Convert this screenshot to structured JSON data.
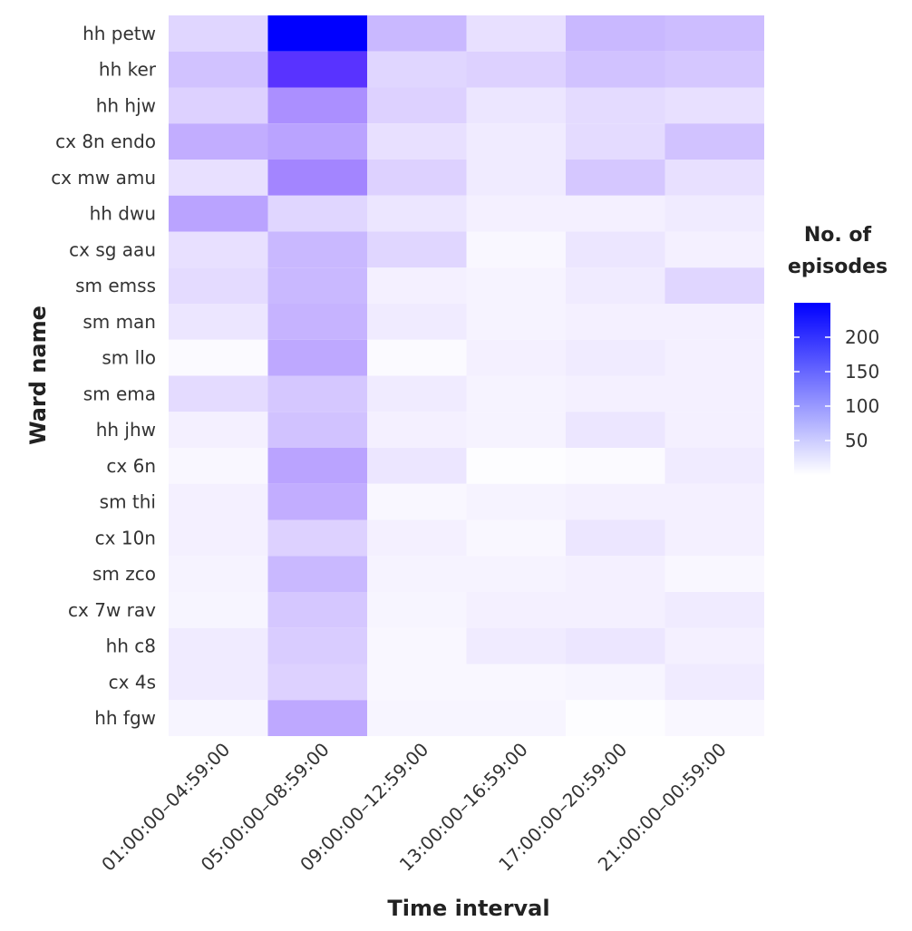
{
  "chart_data": {
    "type": "heatmap",
    "xlabel": "Time interval",
    "ylabel": "Ward name",
    "x_categories": [
      "01:00:00–04:59:00",
      "05:00:00–08:59:00",
      "09:00:00–12:59:00",
      "13:00:00–16:59:00",
      "17:00:00–20:59:00",
      "21:00:00–00:59:00"
    ],
    "y_categories": [
      "hh petw",
      "hh ker",
      "hh hjw",
      "cx 8n endo",
      "cx mw amu",
      "hh dwu",
      "cx sg aau",
      "sm emss",
      "sm man",
      "sm llo",
      "sm ema",
      "hh jhw",
      "cx 6n",
      "sm thi",
      "cx 10n",
      "sm zco",
      "cx 7w rav",
      "hh c8",
      "cx 4s",
      "hh fgw"
    ],
    "values": [
      [
        40,
        250,
        70,
        30,
        70,
        65
      ],
      [
        60,
        200,
        40,
        45,
        60,
        55
      ],
      [
        45,
        110,
        45,
        25,
        35,
        30
      ],
      [
        80,
        90,
        30,
        20,
        35,
        60
      ],
      [
        30,
        120,
        45,
        20,
        55,
        30
      ],
      [
        90,
        40,
        25,
        15,
        15,
        20
      ],
      [
        30,
        70,
        40,
        8,
        25,
        15
      ],
      [
        35,
        70,
        15,
        12,
        20,
        40
      ],
      [
        25,
        75,
        20,
        12,
        15,
        15
      ],
      [
        5,
        85,
        5,
        15,
        20,
        15
      ],
      [
        35,
        55,
        20,
        12,
        15,
        15
      ],
      [
        15,
        60,
        15,
        12,
        25,
        15
      ],
      [
        8,
        90,
        25,
        2,
        5,
        20
      ],
      [
        15,
        80,
        8,
        12,
        15,
        15
      ],
      [
        15,
        45,
        15,
        8,
        25,
        15
      ],
      [
        12,
        70,
        12,
        12,
        15,
        8
      ],
      [
        10,
        55,
        10,
        15,
        15,
        20
      ],
      [
        20,
        50,
        8,
        20,
        25,
        15
      ],
      [
        20,
        45,
        8,
        8,
        10,
        20
      ],
      [
        10,
        85,
        10,
        10,
        2,
        8
      ]
    ],
    "color_scale": {
      "low": "#ffffff",
      "high": "#0000ff",
      "domain": [
        0,
        250
      ]
    },
    "legend": {
      "title_lines": [
        "No. of",
        "episodes"
      ],
      "ticks": [
        50,
        100,
        150,
        200
      ],
      "placement": "right"
    }
  }
}
